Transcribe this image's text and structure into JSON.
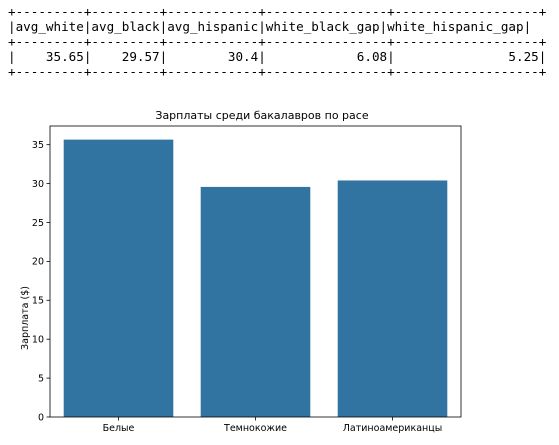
{
  "table": {
    "separator": "+---------+---------+------------+----------------+-------------------+",
    "header": "|avg_white|avg_black|avg_hispanic|white_black_gap|white_hispanic_gap|",
    "row": "|    35.65|    29.57|        30.4|            6.08|               5.25|",
    "columns": [
      "avg_white",
      "avg_black",
      "avg_hispanic",
      "white_black_gap",
      "white_hispanic_gap"
    ],
    "values": [
      "35.65",
      "29.57",
      "30.4",
      "6.08",
      "5.25"
    ]
  },
  "chart_data": {
    "type": "bar",
    "title": "Зарплаты среди бакалавров по расе",
    "xlabel": "",
    "ylabel": "Зарплата ($)",
    "categories": [
      "Белые",
      "Темнокожие",
      "Латиноамериканцы"
    ],
    "values": [
      35.65,
      29.57,
      30.4
    ],
    "ylim": [
      0,
      37.4
    ],
    "yticks": [
      0,
      5,
      10,
      15,
      20,
      25,
      30,
      35
    ],
    "grid": false,
    "bar_color": "#3274a1"
  }
}
